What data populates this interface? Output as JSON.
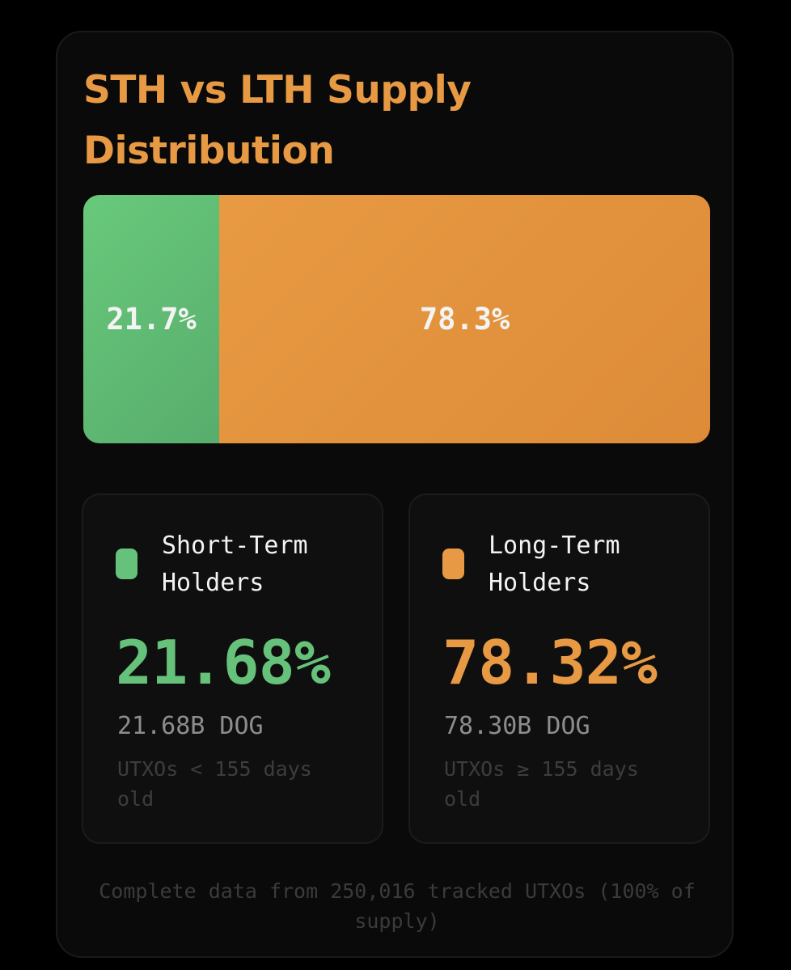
{
  "title": "STH vs LTH Supply Distribution",
  "colors": {
    "sth": "#66c27a",
    "lth": "#e79a43",
    "title": "#e79a43"
  },
  "chart_data": {
    "type": "bar",
    "orientation": "horizontal-stacked",
    "title": "STH vs LTH Supply Distribution",
    "series": [
      {
        "name": "Short-Term Holders",
        "values": [
          21.7
        ],
        "label": "21.7%"
      },
      {
        "name": "Long-Term Holders",
        "values": [
          78.3
        ],
        "label": "78.3%"
      }
    ],
    "unit": "%",
    "ylim": [
      0,
      100
    ]
  },
  "cards": {
    "sth": {
      "name": "Short-Term Holders",
      "percent": "21.68%",
      "amount": "21.68B DOG",
      "note": "UTXOs < 155 days old"
    },
    "lth": {
      "name": "Long-Term Holders",
      "percent": "78.32%",
      "amount": "78.30B DOG",
      "note": "UTXOs ≥ 155 days old"
    }
  },
  "footnote": "Complete data from 250,016 tracked UTXOs (100% of supply)"
}
